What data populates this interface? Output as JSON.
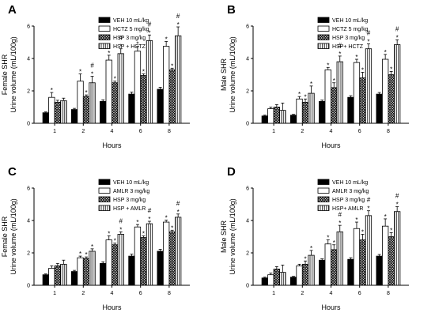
{
  "figure": {
    "colors": {
      "veh": "#000000",
      "drug": "#ffffff",
      "hsp": "hatch",
      "combo": "vertical-stripes"
    }
  },
  "chart_data": [
    {
      "type": "bar",
      "panel_label": "A",
      "title": "",
      "xlabel": "Hours",
      "ylabel": [
        "Female SHR",
        "Urine volume (mL/100g)"
      ],
      "ylim": [
        0,
        6
      ],
      "yticks": [
        "0",
        "2",
        "4",
        "6"
      ],
      "categories": [
        "1",
        "2",
        "4",
        "6",
        "8"
      ],
      "legend_position": "top-right",
      "series": [
        {
          "name": "VEH 10 mL/kg",
          "fill": "black",
          "values": [
            0.65,
            0.85,
            1.35,
            1.8,
            2.1
          ],
          "errors": [
            0.05,
            0.07,
            0.1,
            0.12,
            0.12
          ],
          "marks": [
            "",
            "",
            "",
            "",
            ""
          ]
        },
        {
          "name": "HCTZ 5 mg/kg",
          "fill": "white",
          "values": [
            1.6,
            2.6,
            3.9,
            4.45,
            4.75
          ],
          "errors": [
            0.3,
            0.45,
            0.3,
            0.3,
            0.3
          ],
          "marks": [
            "*",
            "*",
            "*",
            "*",
            "*"
          ]
        },
        {
          "name": "HSP 3 mg/kg",
          "fill": "hatch",
          "values": [
            1.3,
            1.65,
            2.5,
            2.95,
            3.3
          ],
          "errors": [
            0.12,
            0.1,
            0.1,
            0.1,
            0.1
          ],
          "marks": [
            "",
            "*",
            "*",
            "*",
            "*"
          ]
        },
        {
          "name": "HSP + HCTZ",
          "fill": "stripes",
          "values": [
            1.4,
            2.5,
            4.3,
            5.1,
            5.4
          ],
          "errors": [
            0.15,
            0.4,
            0.3,
            0.35,
            0.55
          ],
          "marks": [
            "",
            "#\n*",
            "#\n*",
            "#\n*",
            "#\n*"
          ]
        }
      ]
    },
    {
      "type": "bar",
      "panel_label": "B",
      "title": "",
      "xlabel": "Hours",
      "ylabel": [
        "Male SHR",
        "Urine volume (mL/100g)"
      ],
      "ylim": [
        0,
        6
      ],
      "yticks": [
        "0",
        "2",
        "4",
        "6"
      ],
      "categories": [
        "1",
        "2",
        "4",
        "6",
        "8"
      ],
      "legend_position": "top-right",
      "series": [
        {
          "name": "VEH 10 mL/kg",
          "fill": "black",
          "values": [
            0.45,
            0.5,
            1.35,
            1.6,
            1.8
          ],
          "errors": [
            0.05,
            0.05,
            0.08,
            0.1,
            0.1
          ],
          "marks": [
            "",
            "",
            "",
            "",
            ""
          ]
        },
        {
          "name": "HCTZ 5 mg/kg",
          "fill": "white",
          "values": [
            0.9,
            1.5,
            3.3,
            3.75,
            3.95
          ],
          "errors": [
            0.1,
            0.15,
            0.15,
            0.2,
            0.3
          ],
          "marks": [
            "",
            "*",
            "*",
            "*",
            "*"
          ]
        },
        {
          "name": "HSP 3 mg/kg",
          "fill": "hatch",
          "values": [
            1.0,
            1.3,
            2.2,
            2.8,
            3.0
          ],
          "errors": [
            0.15,
            0.2,
            0.3,
            0.35,
            0.2
          ],
          "marks": [
            "",
            "*",
            "*",
            "*",
            "*"
          ]
        },
        {
          "name": "HSP+ HCTZ",
          "fill": "stripes",
          "values": [
            0.8,
            1.85,
            3.8,
            4.6,
            4.85
          ],
          "errors": [
            0.45,
            0.45,
            0.35,
            0.3,
            0.3
          ],
          "marks": [
            "",
            "*",
            "#\n*",
            "#\n*",
            "#\n*"
          ]
        }
      ]
    },
    {
      "type": "bar",
      "panel_label": "C",
      "title": "",
      "xlabel": "Hours",
      "ylabel": [
        "Female SHR",
        "Urine volume (mL/100g)"
      ],
      "ylim": [
        0,
        6
      ],
      "yticks": [
        "0",
        "2",
        "4",
        "6"
      ],
      "categories": [
        "1",
        "2",
        "4",
        "6",
        "8"
      ],
      "legend_position": "top-right",
      "series": [
        {
          "name": "VEH 10 mL/kg",
          "fill": "black",
          "values": [
            0.65,
            0.85,
            1.35,
            1.8,
            2.1
          ],
          "errors": [
            0.05,
            0.07,
            0.1,
            0.12,
            0.12
          ],
          "marks": [
            "",
            "",
            "",
            "",
            ""
          ]
        },
        {
          "name": "AMLR 3 mg/kg",
          "fill": "white",
          "values": [
            1.05,
            1.7,
            2.8,
            3.6,
            3.9
          ],
          "errors": [
            0.15,
            0.1,
            0.25,
            0.15,
            0.12
          ],
          "marks": [
            "",
            "*",
            "*",
            "*",
            "*"
          ]
        },
        {
          "name": "HSP 3 mg/kg",
          "fill": "hatch",
          "values": [
            1.2,
            1.65,
            2.5,
            2.95,
            3.3
          ],
          "errors": [
            0.15,
            0.1,
            0.1,
            0.1,
            0.1
          ],
          "marks": [
            "",
            "*",
            "*",
            "*",
            "*"
          ]
        },
        {
          "name": "HSP + AMLR",
          "fill": "stripes",
          "values": [
            1.3,
            2.1,
            3.15,
            3.8,
            4.2
          ],
          "errors": [
            0.25,
            0.15,
            0.15,
            0.15,
            0.2
          ],
          "marks": [
            "",
            "*",
            "#\n*",
            "#\n*",
            "#\n*"
          ]
        }
      ]
    },
    {
      "type": "bar",
      "panel_label": "D",
      "title": "",
      "xlabel": "Hours",
      "ylabel": [
        "Male SHR",
        "Urine volume (mL/100g)"
      ],
      "ylim": [
        0,
        6
      ],
      "yticks": [
        "0",
        "2",
        "4",
        "6"
      ],
      "categories": [
        "1",
        "2",
        "4",
        "6",
        "8"
      ],
      "legend_position": "top-right",
      "series": [
        {
          "name": "VEH 10 mL/kg",
          "fill": "black",
          "values": [
            0.45,
            0.5,
            1.55,
            1.6,
            1.8
          ],
          "errors": [
            0.05,
            0.05,
            0.08,
            0.1,
            0.1
          ],
          "marks": [
            "",
            "",
            "",
            "",
            ""
          ]
        },
        {
          "name": "AMLR 3 mg/kg",
          "fill": "white",
          "values": [
            0.65,
            1.2,
            2.55,
            3.5,
            3.65
          ],
          "errors": [
            0.1,
            0.1,
            0.25,
            0.4,
            0.45
          ],
          "marks": [
            "",
            "",
            "*",
            "*",
            "*"
          ]
        },
        {
          "name": "HSP 3 mg/kg",
          "fill": "hatch",
          "values": [
            1.0,
            1.3,
            2.2,
            2.8,
            3.0
          ],
          "errors": [
            0.15,
            0.2,
            0.3,
            0.35,
            0.25
          ],
          "marks": [
            "",
            "*",
            "*",
            "*",
            "*"
          ]
        },
        {
          "name": "HSP+ AMLR",
          "fill": "stripes",
          "values": [
            0.8,
            1.85,
            3.3,
            4.3,
            4.55
          ],
          "errors": [
            0.45,
            0.3,
            0.4,
            0.3,
            0.3
          ],
          "marks": [
            "",
            "*",
            "#\n*",
            "#\n*",
            "#\n*"
          ]
        }
      ]
    }
  ]
}
